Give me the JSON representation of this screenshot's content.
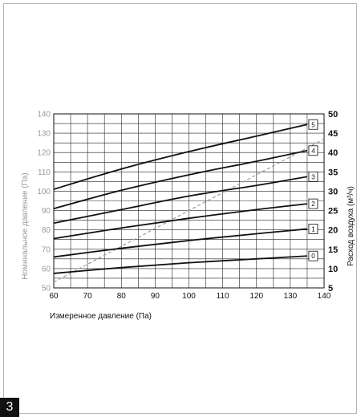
{
  "page_number": "3",
  "chart_data": {
    "type": "line",
    "title": "",
    "xlabel": "Измеренное давление (Па)",
    "ylabel": "Номинальное давление (Па)",
    "y2label": "Расход воздуха (м³/ч)",
    "xlim": [
      60,
      140
    ],
    "ylim": [
      50,
      140
    ],
    "y2lim": [
      5,
      50
    ],
    "x_ticks": [
      60,
      70,
      80,
      90,
      100,
      110,
      120,
      130,
      140
    ],
    "y_ticks": [
      50,
      60,
      70,
      80,
      90,
      100,
      110,
      120,
      130,
      140
    ],
    "y2_ticks": [
      5,
      10,
      15,
      20,
      25,
      30,
      35,
      40,
      45,
      50
    ],
    "grid": true,
    "series": [
      {
        "name": "0",
        "x": [
          60,
          80,
          100,
          120,
          135
        ],
        "y": [
          57.5,
          60.5,
          63,
          65,
          66.5
        ]
      },
      {
        "name": "1",
        "x": [
          60,
          80,
          100,
          120,
          135
        ],
        "y": [
          66,
          70.5,
          74.5,
          78,
          80.5
        ]
      },
      {
        "name": "2",
        "x": [
          60,
          80,
          100,
          120,
          135
        ],
        "y": [
          75.5,
          81,
          86,
          90.5,
          93.5
        ]
      },
      {
        "name": "3",
        "x": [
          60,
          80,
          100,
          120,
          135
        ],
        "y": [
          83.5,
          90.5,
          97.5,
          103,
          107.5
        ]
      },
      {
        "name": "4",
        "x": [
          60,
          80,
          100,
          120,
          135
        ],
        "y": [
          91,
          100.5,
          108.5,
          115.5,
          121
        ]
      },
      {
        "name": "5",
        "x": [
          60,
          80,
          100,
          120,
          135
        ],
        "y": [
          101,
          111.5,
          120.5,
          128.5,
          134.5
        ]
      }
    ],
    "dashed_line": {
      "x": [
        60,
        140
      ],
      "y": [
        53,
        127
      ]
    },
    "colors": {
      "grid": "#222222",
      "curves": "#111111",
      "dashed": "#9a9a9a",
      "left_axis_text": "#9a9a9a",
      "right_axis_text": "#111111"
    }
  }
}
